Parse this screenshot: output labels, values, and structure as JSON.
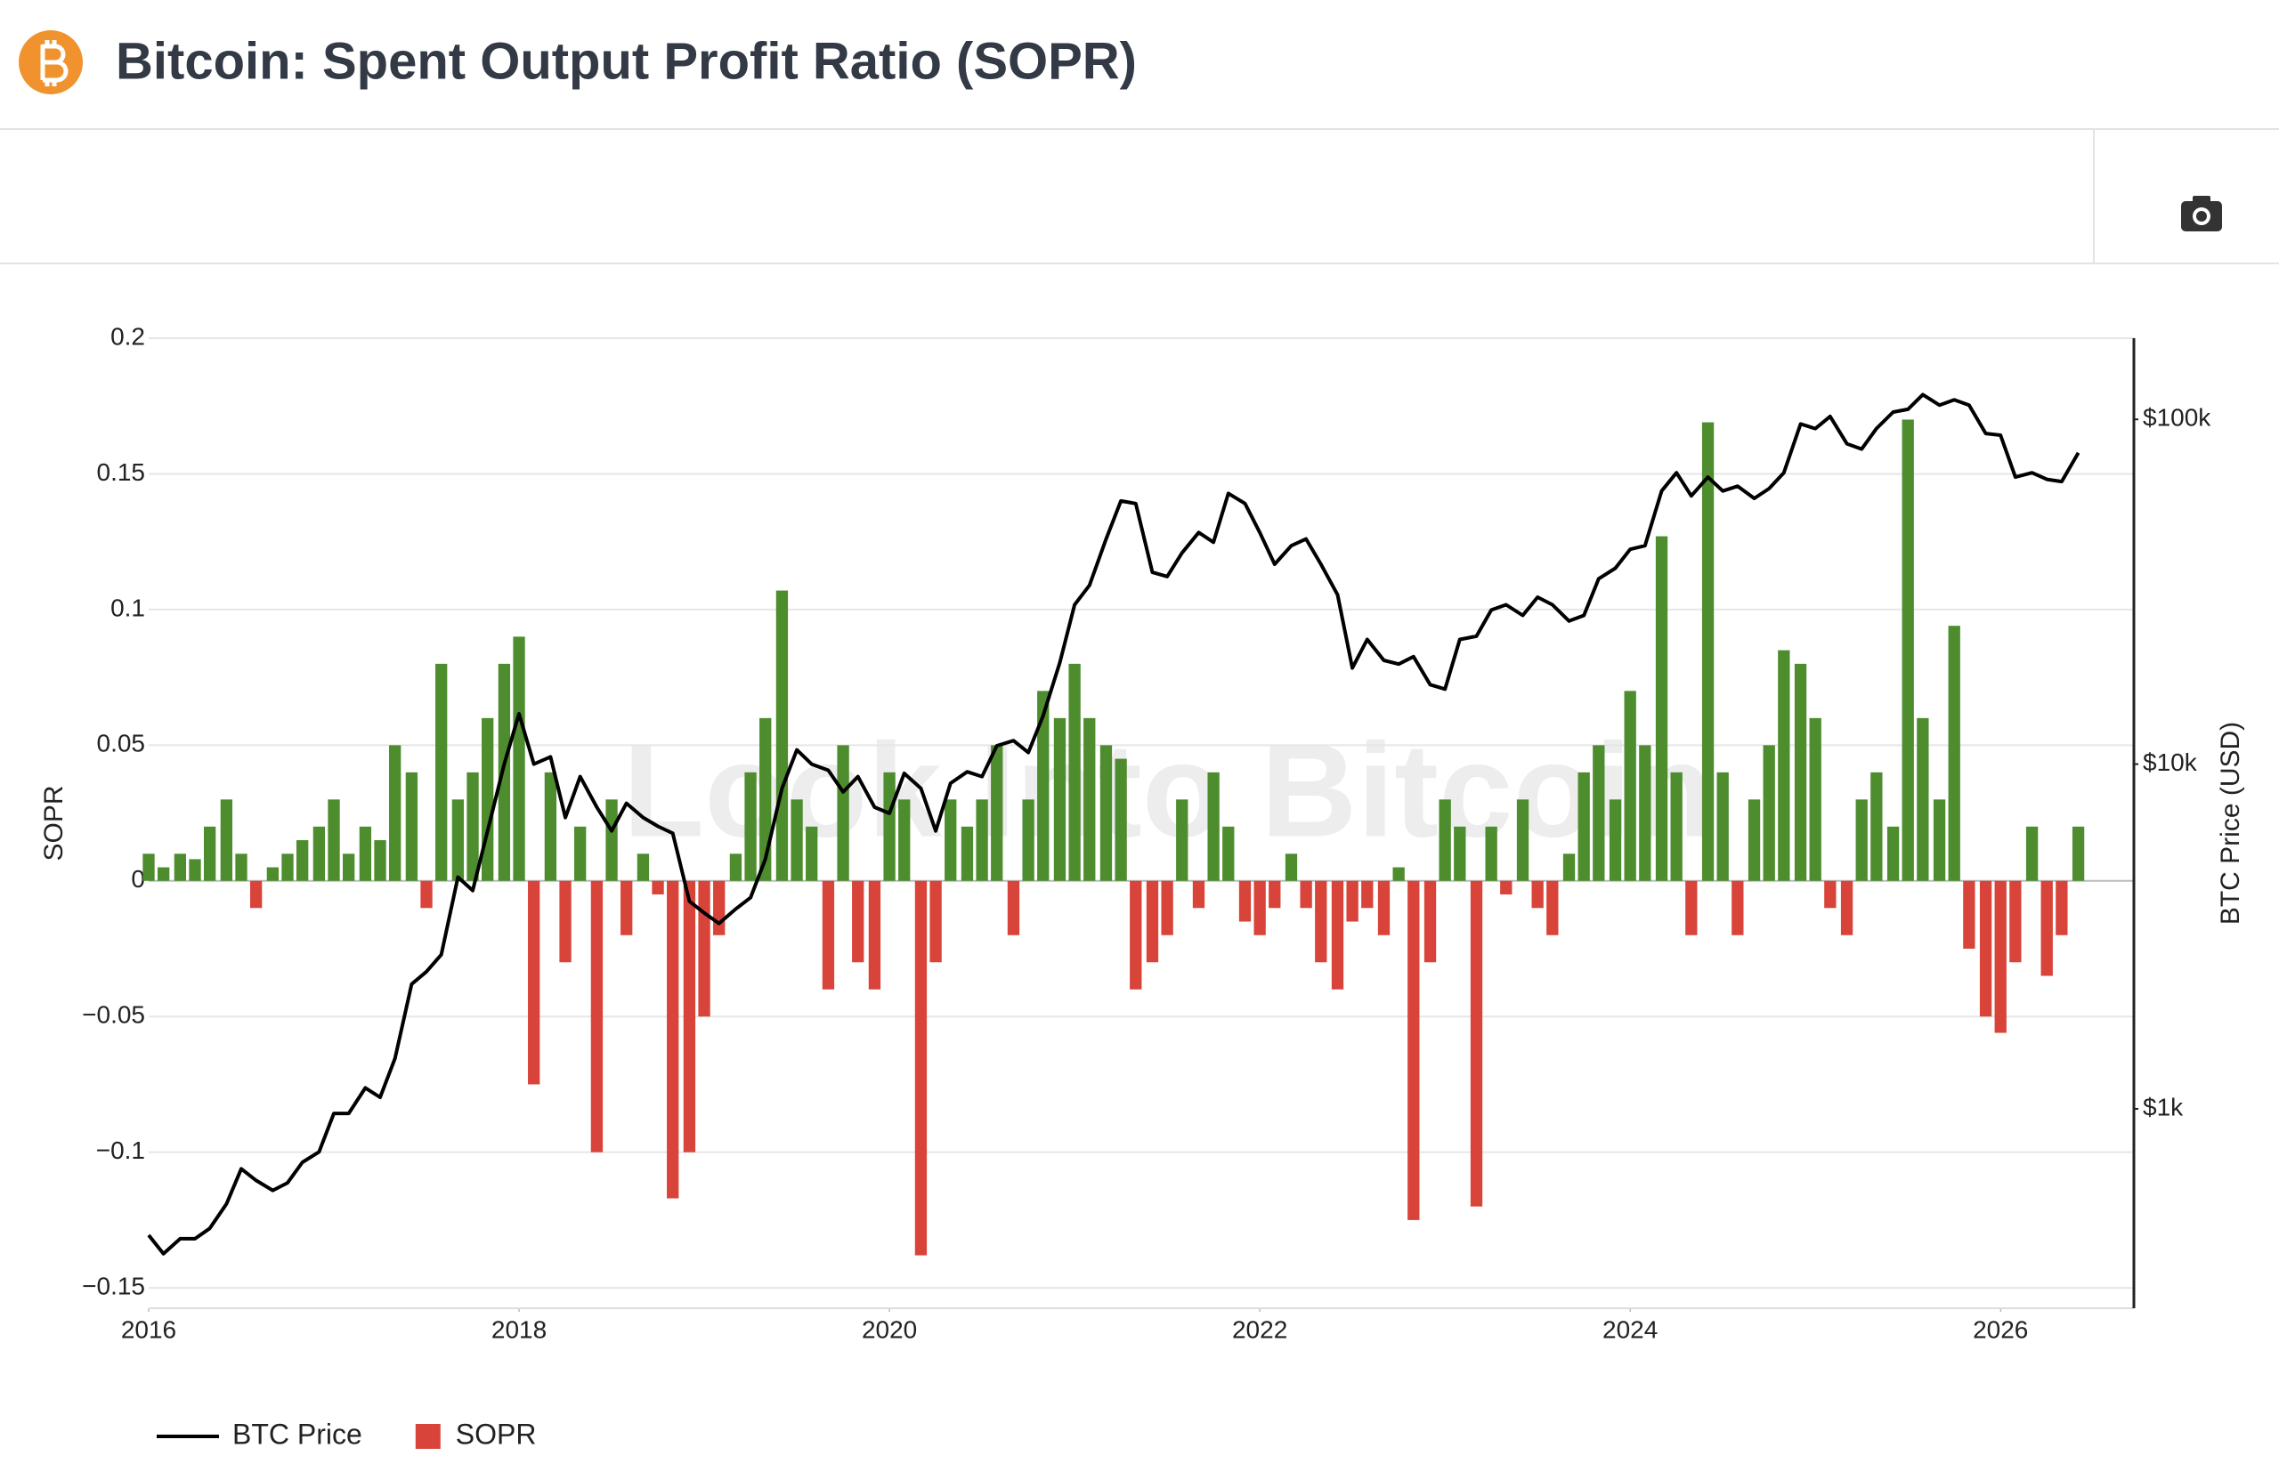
{
  "header": {
    "title": "Bitcoin: Spent Output Profit Ratio (SOPR)"
  },
  "chart_data": {
    "type": "bar-line",
    "watermark": "Look Into Bitcoin",
    "xlim": [
      2016,
      2026.72
    ],
    "xticks": [
      2016,
      2018,
      2020,
      2022,
      2024,
      2026
    ],
    "ylim": [
      -0.1575,
      0.2
    ],
    "yticks": [
      {
        "value": -0.15,
        "label": "−0.15"
      },
      {
        "value": -0.1,
        "label": "−0.1"
      },
      {
        "value": -0.05,
        "label": "−0.05"
      },
      0,
      0.05,
      0.1,
      0.15,
      0.2
    ],
    "y2lim": [
      264,
      172000
    ],
    "y2log": true,
    "y2ticks": [
      {
        "value": 1000,
        "label": "$1k"
      },
      {
        "value": 10000,
        "label": "$10k"
      },
      {
        "value": 100000,
        "label": "$100k"
      }
    ],
    "ylabel": "SOPR",
    "y2label": "BTC Price (USD)",
    "grid": true,
    "x": [
      2016,
      2016.08,
      2016.17,
      2016.25,
      2016.33,
      2016.42,
      2016.5,
      2016.58,
      2016.67,
      2016.75,
      2016.83,
      2016.92,
      2017,
      2017.08,
      2017.17,
      2017.25,
      2017.33,
      2017.42,
      2017.5,
      2017.58,
      2017.67,
      2017.75,
      2017.83,
      2017.92,
      2018,
      2018.08,
      2018.17,
      2018.25,
      2018.33,
      2018.42,
      2018.5,
      2018.58,
      2018.67,
      2018.75,
      2018.83,
      2018.92,
      2019,
      2019.08,
      2019.17,
      2019.25,
      2019.33,
      2019.42,
      2019.5,
      2019.58,
      2019.67,
      2019.75,
      2019.83,
      2019.92,
      2020,
      2020.08,
      2020.17,
      2020.25,
      2020.33,
      2020.42,
      2020.5,
      2020.58,
      2020.67,
      2020.75,
      2020.83,
      2020.92,
      2021,
      2021.08,
      2021.17,
      2021.25,
      2021.33,
      2021.42,
      2021.5,
      2021.58,
      2021.67,
      2021.75,
      2021.83,
      2021.92,
      2022,
      2022.08,
      2022.17,
      2022.25,
      2022.33,
      2022.42,
      2022.5,
      2022.58,
      2022.67,
      2022.75,
      2022.83,
      2022.92,
      2023,
      2023.08,
      2023.17,
      2023.25,
      2023.33,
      2023.42,
      2023.5,
      2023.58,
      2023.67,
      2023.75,
      2023.83,
      2023.92,
      2024,
      2024.08,
      2024.17,
      2024.25,
      2024.33,
      2024.42,
      2024.5,
      2024.58,
      2024.67,
      2024.75,
      2024.83,
      2024.92,
      2025,
      2025.08,
      2025.17,
      2025.25,
      2025.33,
      2025.42,
      2025.5,
      2025.58,
      2025.67,
      2025.75,
      2025.83,
      2025.92,
      2026,
      2026.08,
      2026.17,
      2026.25,
      2026.33,
      2026.42
    ],
    "series": [
      {
        "name": "BTC Price",
        "color": "#000000",
        "axis": "y2",
        "values": [
          430,
          380,
          420,
          420,
          450,
          530,
          670,
          620,
          580,
          610,
          700,
          750,
          970,
          970,
          1150,
          1080,
          1400,
          2300,
          2500,
          2800,
          4700,
          4300,
          6400,
          10000,
          14000,
          10000,
          10500,
          7000,
          9200,
          7500,
          6400,
          7700,
          7000,
          6600,
          6300,
          4000,
          3700,
          3450,
          3800,
          4100,
          5300,
          8500,
          11000,
          10000,
          9600,
          8300,
          9200,
          7500,
          7200,
          9400,
          8500,
          6400,
          8800,
          9500,
          9200,
          11300,
          11700,
          10800,
          13800,
          19700,
          29000,
          33000,
          45000,
          58000,
          57000,
          36000,
          35000,
          41000,
          47000,
          44000,
          61000,
          57000,
          47000,
          38000,
          43000,
          45000,
          38000,
          31000,
          19000,
          23000,
          20000,
          19500,
          20500,
          17000,
          16500,
          23000,
          23500,
          28000,
          29000,
          27000,
          30500,
          29000,
          26000,
          27000,
          34500,
          37000,
          42000,
          43000,
          62000,
          70000,
          60000,
          68000,
          62000,
          64000,
          59000,
          63000,
          70000,
          97000,
          94000,
          102000,
          85000,
          82000,
          94000,
          105000,
          107000,
          118000,
          110000,
          114000,
          110000,
          91000,
          90000,
          68000,
          70000,
          67000,
          66000,
          80000
        ]
      },
      {
        "name": "SOPR",
        "color": "#d9443a",
        "positive_color": "#4e8d2e",
        "values": [
          0.01,
          0.005,
          0.01,
          0.008,
          0.02,
          0.03,
          0.01,
          -0.01,
          0.005,
          0.01,
          0.015,
          0.02,
          0.03,
          0.01,
          0.02,
          0.015,
          0.05,
          0.04,
          -0.01,
          0.08,
          0.03,
          0.04,
          0.06,
          0.08,
          0.09,
          -0.075,
          0.04,
          -0.03,
          0.02,
          -0.1,
          0.03,
          -0.02,
          0.01,
          -0.005,
          -0.117,
          -0.1,
          -0.05,
          -0.02,
          0.01,
          0.04,
          0.06,
          0.107,
          0.03,
          0.02,
          -0.04,
          0.05,
          -0.03,
          -0.04,
          0.04,
          0.03,
          -0.138,
          -0.03,
          0.03,
          0.02,
          0.03,
          0.05,
          -0.02,
          0.03,
          0.07,
          0.06,
          0.08,
          0.06,
          0.05,
          0.045,
          -0.04,
          -0.03,
          -0.02,
          0.03,
          -0.01,
          0.04,
          0.02,
          -0.015,
          -0.02,
          -0.01,
          0.01,
          -0.01,
          -0.03,
          -0.04,
          -0.015,
          -0.01,
          -0.02,
          0.005,
          -0.125,
          -0.03,
          0.03,
          0.02,
          -0.12,
          0.02,
          -0.005,
          0.03,
          -0.01,
          -0.02,
          0.01,
          0.04,
          0.05,
          0.03,
          0.07,
          0.05,
          0.127,
          0.04,
          -0.02,
          0.169,
          0.04,
          -0.02,
          0.03,
          0.05,
          0.085,
          0.08,
          0.06,
          -0.01,
          -0.02,
          0.03,
          0.04,
          0.02,
          0.17,
          0.06,
          0.03,
          0.094,
          -0.025,
          -0.05,
          -0.056,
          -0.03,
          0.02,
          -0.035,
          -0.02,
          0.02
        ]
      }
    ]
  }
}
